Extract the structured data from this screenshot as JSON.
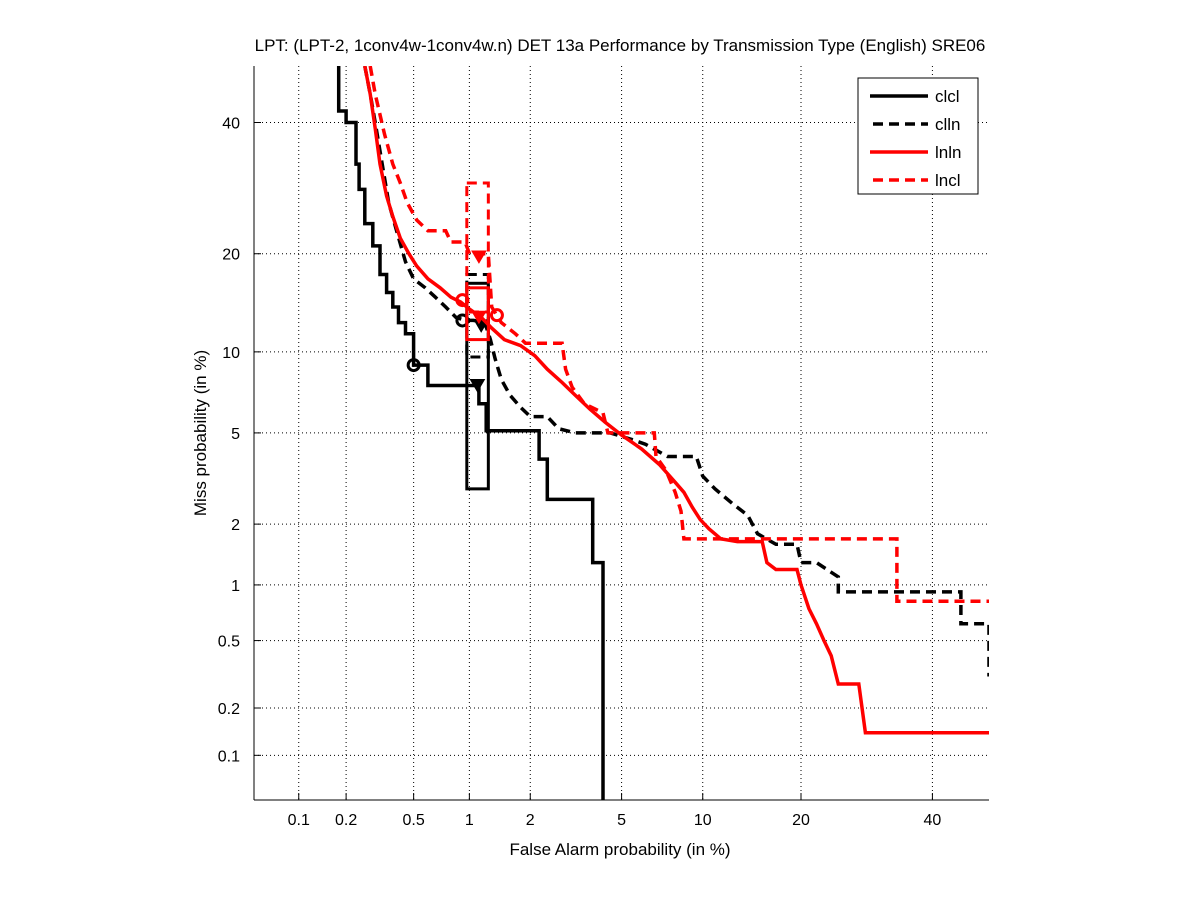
{
  "chart_data": {
    "type": "line",
    "subtype": "DET curve (normal deviate scale)",
    "title": "LPT: (LPT-2, 1conv4w-1conv4w.n) DET 13a Performance by Transmission Type (English) SRE06",
    "xlabel": "False Alarm probability (in %)",
    "ylabel": "Miss probability (in %)",
    "x_scale": "normal-deviate",
    "y_scale": "normal-deviate",
    "xlim": [
      0.05,
      50
    ],
    "ylim": [
      0.05,
      50
    ],
    "x_ticks": [
      0.1,
      0.2,
      0.5,
      1,
      2,
      5,
      10,
      20,
      40
    ],
    "x_tick_labels": [
      "0.1",
      "0.2",
      "0.5",
      "1",
      "2",
      "5",
      "10",
      "20",
      "40"
    ],
    "y_ticks": [
      0.1,
      0.2,
      0.5,
      1,
      2,
      5,
      10,
      20,
      40
    ],
    "y_tick_labels": [
      "0.1",
      "0.2",
      "0.5",
      "1",
      "2",
      "5",
      "10",
      "20",
      "40"
    ],
    "grid": true,
    "legend_position": "top-right",
    "series": [
      {
        "name": "clcl",
        "color": "#000000",
        "style": "solid",
        "points": [
          [
            0.18,
            50
          ],
          [
            0.18,
            42
          ],
          [
            0.2,
            42
          ],
          [
            0.2,
            40
          ],
          [
            0.23,
            40
          ],
          [
            0.23,
            33
          ],
          [
            0.24,
            33
          ],
          [
            0.24,
            29
          ],
          [
            0.26,
            29
          ],
          [
            0.26,
            24
          ],
          [
            0.29,
            24
          ],
          [
            0.29,
            21
          ],
          [
            0.32,
            21
          ],
          [
            0.32,
            17.5
          ],
          [
            0.35,
            17.5
          ],
          [
            0.35,
            15.5
          ],
          [
            0.38,
            15.5
          ],
          [
            0.38,
            14
          ],
          [
            0.41,
            14
          ],
          [
            0.41,
            12.5
          ],
          [
            0.45,
            12.5
          ],
          [
            0.45,
            11.5
          ],
          [
            0.5,
            11.5
          ],
          [
            0.5,
            9
          ],
          [
            0.6,
            9
          ],
          [
            0.6,
            7.6
          ],
          [
            0.97,
            7.6
          ],
          [
            0.97,
            7.6
          ],
          [
            1.12,
            7.6
          ],
          [
            1.12,
            6.5
          ],
          [
            1.22,
            6.5
          ],
          [
            1.22,
            5.1
          ],
          [
            2.2,
            5.1
          ],
          [
            2.2,
            3.9
          ],
          [
            2.4,
            3.9
          ],
          [
            2.4,
            2.6
          ],
          [
            3.8,
            2.6
          ],
          [
            3.8,
            1.3
          ],
          [
            4.2,
            1.3
          ],
          [
            4.2,
            0.05
          ]
        ],
        "marker_circle": [
          0.5,
          9
        ],
        "marker_triangle": [
          1.1,
          7.6
        ],
        "ci_box": {
          "x": [
            0.97,
            1.25
          ],
          "y": [
            2.9,
            16.5
          ]
        }
      },
      {
        "name": "clln",
        "color": "#000000",
        "style": "dashed",
        "points": [
          [
            0.26,
            50
          ],
          [
            0.28,
            45
          ],
          [
            0.3,
            40
          ],
          [
            0.33,
            33
          ],
          [
            0.36,
            27
          ],
          [
            0.4,
            23
          ],
          [
            0.45,
            19
          ],
          [
            0.5,
            17
          ],
          [
            0.58,
            16
          ],
          [
            0.66,
            15
          ],
          [
            0.75,
            14
          ],
          [
            0.85,
            13
          ],
          [
            0.95,
            12.7
          ],
          [
            1.05,
            12.7
          ],
          [
            1.2,
            12.5
          ],
          [
            1.28,
            11
          ],
          [
            1.35,
            9.5
          ],
          [
            1.45,
            8
          ],
          [
            1.6,
            7
          ],
          [
            1.8,
            6.3
          ],
          [
            2.0,
            5.8
          ],
          [
            2.4,
            5.8
          ],
          [
            2.7,
            5.2
          ],
          [
            3.2,
            5.0
          ],
          [
            4.5,
            5.0
          ],
          [
            5.5,
            4.7
          ],
          [
            6.2,
            4.5
          ],
          [
            7.5,
            4.0
          ],
          [
            9.5,
            4.0
          ],
          [
            10.0,
            3.3
          ],
          [
            11.0,
            2.9
          ],
          [
            12.5,
            2.5
          ],
          [
            14.0,
            2.2
          ],
          [
            15.0,
            1.8
          ],
          [
            17.0,
            1.6
          ],
          [
            19.5,
            1.6
          ],
          [
            20,
            1.3
          ],
          [
            22,
            1.3
          ],
          [
            25,
            1.1
          ],
          [
            25,
            0.92
          ],
          [
            45,
            0.92
          ],
          [
            45,
            0.62
          ],
          [
            52,
            0.62
          ],
          [
            52,
            0.31
          ],
          [
            60,
            0.31
          ]
        ],
        "marker_circle": [
          0.92,
          12.7
        ],
        "marker_triangle": [
          1.15,
          12.2
        ],
        "ci_box": {
          "x": [
            0.97,
            1.25
          ],
          "y": [
            9.6,
            17.5
          ]
        }
      },
      {
        "name": "lnln",
        "color": "#ff0000",
        "style": "solid",
        "points": [
          [
            0.26,
            50
          ],
          [
            0.28,
            45
          ],
          [
            0.3,
            39
          ],
          [
            0.32,
            33
          ],
          [
            0.35,
            28
          ],
          [
            0.38,
            25
          ],
          [
            0.42,
            22
          ],
          [
            0.47,
            20
          ],
          [
            0.52,
            18.5
          ],
          [
            0.6,
            17
          ],
          [
            0.7,
            16
          ],
          [
            0.8,
            15
          ],
          [
            0.9,
            14.5
          ],
          [
            1.0,
            13.8
          ],
          [
            1.15,
            13
          ],
          [
            1.3,
            12
          ],
          [
            1.5,
            11
          ],
          [
            1.8,
            10.5
          ],
          [
            2.1,
            9.7
          ],
          [
            2.4,
            8.7
          ],
          [
            2.8,
            7.8
          ],
          [
            3.2,
            7.0
          ],
          [
            3.7,
            6.2
          ],
          [
            4.3,
            5.5
          ],
          [
            5.0,
            4.9
          ],
          [
            6.0,
            4.3
          ],
          [
            7.0,
            3.7
          ],
          [
            8.0,
            3.1
          ],
          [
            8.6,
            2.8
          ],
          [
            9.2,
            2.4
          ],
          [
            9.8,
            2.1
          ],
          [
            10.5,
            1.9
          ],
          [
            11.5,
            1.7
          ],
          [
            13,
            1.65
          ],
          [
            15.5,
            1.65
          ],
          [
            16,
            1.3
          ],
          [
            17,
            1.2
          ],
          [
            19.5,
            1.2
          ],
          [
            20,
            1.0
          ],
          [
            21,
            0.75
          ],
          [
            22,
            0.62
          ],
          [
            23,
            0.5
          ],
          [
            24,
            0.41
          ],
          [
            25,
            0.28
          ],
          [
            28,
            0.28
          ],
          [
            29,
            0.14
          ],
          [
            60,
            0.14
          ]
        ],
        "marker_circle": [
          0.92,
          14.7
        ],
        "marker_triangle": [
          1.12,
          13.0
        ],
        "ci_box": {
          "x": [
            0.97,
            1.25
          ],
          "y": [
            11,
            16
          ]
        }
      },
      {
        "name": "lncl",
        "color": "#ff0000",
        "style": "dashed",
        "points": [
          [
            0.28,
            50
          ],
          [
            0.3,
            45
          ],
          [
            0.34,
            38
          ],
          [
            0.38,
            33
          ],
          [
            0.42,
            30
          ],
          [
            0.46,
            27
          ],
          [
            0.52,
            24.5
          ],
          [
            0.6,
            23
          ],
          [
            0.75,
            23
          ],
          [
            0.8,
            21.5
          ],
          [
            0.95,
            21.5
          ],
          [
            1.0,
            20
          ],
          [
            1.25,
            20
          ],
          [
            1.3,
            14
          ],
          [
            1.45,
            12.5
          ],
          [
            1.7,
            11.5
          ],
          [
            1.9,
            10.7
          ],
          [
            2.8,
            10.7
          ],
          [
            2.9,
            8.7
          ],
          [
            3.1,
            7.5
          ],
          [
            3.5,
            6.5
          ],
          [
            4.2,
            6.0
          ],
          [
            4.4,
            5.0
          ],
          [
            6.7,
            5.0
          ],
          [
            6.8,
            4.0
          ],
          [
            7.4,
            3.5
          ],
          [
            8.0,
            2.8
          ],
          [
            8.4,
            2.3
          ],
          [
            8.6,
            1.7
          ],
          [
            34,
            1.7
          ],
          [
            34,
            0.82
          ],
          [
            60,
            0.82
          ]
        ],
        "marker_circle": [
          1.38,
          13.2
        ],
        "marker_triangle": [
          1.12,
          19.6
        ],
        "ci_box": {
          "x": [
            0.97,
            1.25
          ],
          "y": [
            13.5,
            30
          ]
        }
      }
    ]
  }
}
